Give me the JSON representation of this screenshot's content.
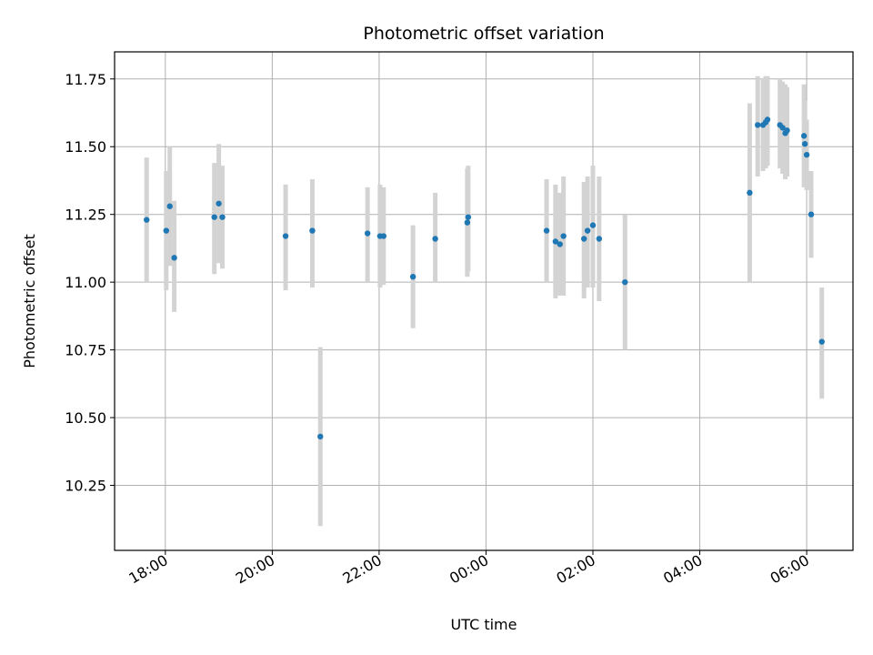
{
  "chart_data": {
    "type": "scatter",
    "title": "Photometric offset variation",
    "xlabel": "UTC time",
    "ylabel": "Photometric offset",
    "x_unit": "UTC time",
    "xlim": [
      "17:03",
      "06:52 (+1 day)"
    ],
    "ylim": [
      10.01,
      11.85
    ],
    "x_ticks": [
      "18:00",
      "20:00",
      "22:00",
      "00:00",
      "02:00",
      "04:00",
      "06:00"
    ],
    "y_ticks": [
      "10.25",
      "10.50",
      "10.75",
      "11.00",
      "11.25",
      "11.50",
      "11.75"
    ],
    "grid": true,
    "marker_color": "#1f77b4",
    "errorbar_color": "#d3d3d3",
    "points": [
      {
        "t": "17:39",
        "y": 11.23,
        "ylo": 11.0,
        "yhi": 11.46
      },
      {
        "t": "18:01",
        "y": 11.19,
        "ylo": 10.97,
        "yhi": 11.41
      },
      {
        "t": "18:05",
        "y": 11.28,
        "ylo": 11.06,
        "yhi": 11.5
      },
      {
        "t": "18:10",
        "y": 11.09,
        "ylo": 10.89,
        "yhi": 11.3
      },
      {
        "t": "18:55",
        "y": 11.24,
        "ylo": 11.03,
        "yhi": 11.44
      },
      {
        "t": "19:00",
        "y": 11.29,
        "ylo": 11.07,
        "yhi": 11.51
      },
      {
        "t": "19:04",
        "y": 11.24,
        "ylo": 11.05,
        "yhi": 11.43
      },
      {
        "t": "20:15",
        "y": 11.17,
        "ylo": 10.97,
        "yhi": 11.36
      },
      {
        "t": "20:45",
        "y": 11.19,
        "ylo": 10.98,
        "yhi": 11.38
      },
      {
        "t": "20:54",
        "y": 10.43,
        "ylo": 10.1,
        "yhi": 10.76
      },
      {
        "t": "21:47",
        "y": 11.18,
        "ylo": 11.0,
        "yhi": 11.35
      },
      {
        "t": "22:01",
        "y": 11.17,
        "ylo": 10.98,
        "yhi": 11.36
      },
      {
        "t": "22:05",
        "y": 11.17,
        "ylo": 10.99,
        "yhi": 11.35
      },
      {
        "t": "22:38",
        "y": 11.02,
        "ylo": 10.83,
        "yhi": 11.21
      },
      {
        "t": "23:03",
        "y": 11.16,
        "ylo": 11.0,
        "yhi": 11.33
      },
      {
        "t": "23:39",
        "y": 11.22,
        "ylo": 11.02,
        "yhi": 11.42
      },
      {
        "t": "23:40",
        "y": 11.24,
        "ylo": 11.04,
        "yhi": 11.43
      },
      {
        "t": "01:08",
        "y": 11.19,
        "ylo": 11.0,
        "yhi": 11.38
      },
      {
        "t": "01:18",
        "y": 11.15,
        "ylo": 10.94,
        "yhi": 11.36
      },
      {
        "t": "01:23",
        "y": 11.14,
        "ylo": 10.95,
        "yhi": 11.33
      },
      {
        "t": "01:27",
        "y": 11.17,
        "ylo": 10.95,
        "yhi": 11.39
      },
      {
        "t": "01:50",
        "y": 11.16,
        "ylo": 10.94,
        "yhi": 11.37
      },
      {
        "t": "01:54",
        "y": 11.19,
        "ylo": 10.98,
        "yhi": 11.39
      },
      {
        "t": "02:00",
        "y": 11.21,
        "ylo": 10.98,
        "yhi": 11.43
      },
      {
        "t": "02:07",
        "y": 11.16,
        "ylo": 10.93,
        "yhi": 11.39
      },
      {
        "t": "02:36",
        "y": 11.0,
        "ylo": 10.75,
        "yhi": 11.25
      },
      {
        "t": "04:56",
        "y": 11.33,
        "ylo": 11.0,
        "yhi": 11.66
      },
      {
        "t": "05:05",
        "y": 11.58,
        "ylo": 11.39,
        "yhi": 11.76
      },
      {
        "t": "05:11",
        "y": 11.58,
        "ylo": 11.41,
        "yhi": 11.75
      },
      {
        "t": "05:14",
        "y": 11.59,
        "ylo": 11.42,
        "yhi": 11.76
      },
      {
        "t": "05:16",
        "y": 11.6,
        "ylo": 11.43,
        "yhi": 11.76
      },
      {
        "t": "05:30",
        "y": 11.58,
        "ylo": 11.42,
        "yhi": 11.75
      },
      {
        "t": "05:33",
        "y": 11.57,
        "ylo": 11.4,
        "yhi": 11.74
      },
      {
        "t": "05:36",
        "y": 11.55,
        "ylo": 11.38,
        "yhi": 11.73
      },
      {
        "t": "05:38",
        "y": 11.56,
        "ylo": 11.39,
        "yhi": 11.72
      },
      {
        "t": "05:57",
        "y": 11.54,
        "ylo": 11.35,
        "yhi": 11.73
      },
      {
        "t": "05:58",
        "y": 11.51,
        "ylo": 11.35,
        "yhi": 11.67
      },
      {
        "t": "06:00",
        "y": 11.47,
        "ylo": 11.34,
        "yhi": 11.6
      },
      {
        "t": "06:05",
        "y": 11.25,
        "ylo": 11.09,
        "yhi": 11.41
      },
      {
        "t": "06:17",
        "y": 10.78,
        "ylo": 10.57,
        "yhi": 10.98
      }
    ]
  }
}
